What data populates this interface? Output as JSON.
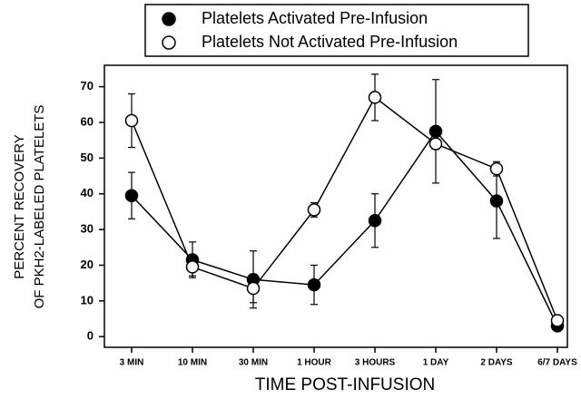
{
  "chart_data": {
    "type": "line",
    "xlabel": "TIME POST-INFUSION",
    "ylabel": [
      "PERCENT RECOVERY",
      "OF PKH2-LABELED PLATELETS"
    ],
    "categories": [
      "3 MIN",
      "10 MIN",
      "30 MIN",
      "1 HOUR",
      "3 HOURS",
      "1 DAY",
      "2 DAYS",
      "6/7 DAYS"
    ],
    "series": [
      {
        "name": "Platelets Activated Pre-Infusion",
        "color": "#000000",
        "marker": "filled",
        "values": [
          39.5,
          21.5,
          16,
          14.5,
          32.5,
          57.5,
          38,
          3
        ],
        "errors": [
          6.5,
          5,
          8,
          5.5,
          7.5,
          14.5,
          10.5,
          1
        ]
      },
      {
        "name": "Platelets Not Activated Pre-Infusion",
        "color": "#000000",
        "marker": "open",
        "values": [
          60.5,
          19.5,
          13.5,
          35.5,
          67,
          54,
          47,
          4.5
        ],
        "errors": [
          7.5,
          2.5,
          4,
          2,
          6.5,
          1,
          2,
          1
        ]
      }
    ],
    "ylim": [
      -3,
      76
    ],
    "yticks": [
      0,
      10,
      20,
      30,
      40,
      50,
      60,
      70
    ],
    "grid": false
  }
}
